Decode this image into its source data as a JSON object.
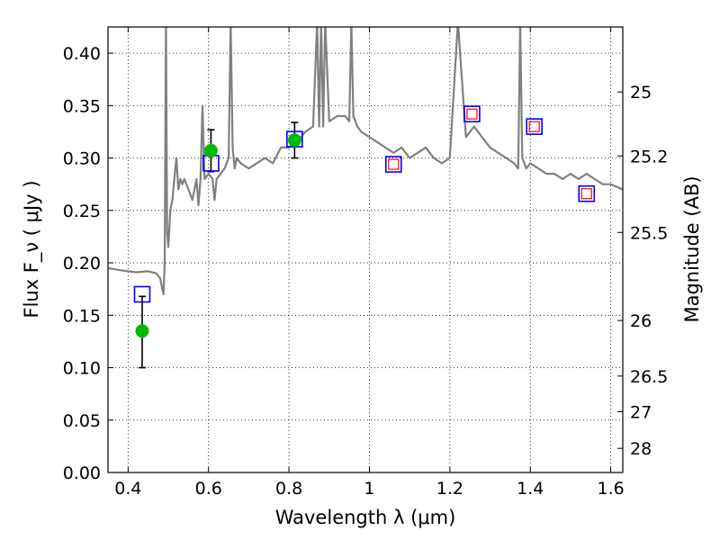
{
  "chart_data": {
    "type": "line",
    "xlabel": "Wavelength  λ (μm)",
    "ylabel": "Flux  F_ν  ( μJy )",
    "ylabel_right": "Magnitude (AB)",
    "xlim": [
      0.35,
      1.63
    ],
    "ylim": [
      0.0,
      0.425
    ],
    "grid": true,
    "x_ticks": [
      0.4,
      0.6,
      0.8,
      1.0,
      1.2,
      1.4,
      1.6
    ],
    "x_tick_labels": [
      "0.4",
      "0.6",
      "0.8",
      "1",
      "1.2",
      "1.4",
      "1.6"
    ],
    "y_ticks": [
      0.0,
      0.05,
      0.1,
      0.15,
      0.2,
      0.25,
      0.3,
      0.35,
      0.4
    ],
    "y_tick_labels": [
      "0.00",
      "0.05",
      "0.10",
      "0.15",
      "0.20",
      "0.25",
      "0.30",
      "0.35",
      "0.40"
    ],
    "right_ticks": [
      {
        "label": "25",
        "flux": 0.363
      },
      {
        "label": "25.2",
        "flux": 0.302
      },
      {
        "label": "25.5",
        "flux": 0.229
      },
      {
        "label": "26",
        "flux": 0.145
      },
      {
        "label": "26.5",
        "flux": 0.092
      },
      {
        "label": "27",
        "flux": 0.058
      },
      {
        "label": "28",
        "flux": 0.023
      }
    ],
    "series": [
      {
        "kind": "line",
        "color": "#808080",
        "x": [
          0.35,
          0.38,
          0.4,
          0.42,
          0.45,
          0.47,
          0.48,
          0.485,
          0.488,
          0.491,
          0.494,
          0.497,
          0.5,
          0.505,
          0.51,
          0.515,
          0.52,
          0.525,
          0.53,
          0.535,
          0.54,
          0.55,
          0.56,
          0.57,
          0.575,
          0.58,
          0.585,
          0.59,
          0.6,
          0.61,
          0.615,
          0.62,
          0.63,
          0.64,
          0.65,
          0.655,
          0.66,
          0.665,
          0.67,
          0.68,
          0.7,
          0.72,
          0.74,
          0.76,
          0.78,
          0.8,
          0.82,
          0.84,
          0.86,
          0.87,
          0.875,
          0.88,
          0.885,
          0.89,
          0.9,
          0.92,
          0.94,
          0.95,
          0.955,
          0.96,
          0.97,
          0.98,
          1.0,
          1.02,
          1.04,
          1.06,
          1.08,
          1.1,
          1.12,
          1.14,
          1.16,
          1.18,
          1.2,
          1.22,
          1.24,
          1.26,
          1.28,
          1.3,
          1.32,
          1.34,
          1.36,
          1.37,
          1.375,
          1.38,
          1.39,
          1.4,
          1.42,
          1.44,
          1.46,
          1.48,
          1.5,
          1.52,
          1.54,
          1.56,
          1.58,
          1.6,
          1.63
        ],
        "y": [
          0.195,
          0.193,
          0.192,
          0.191,
          0.192,
          0.19,
          0.185,
          0.175,
          0.17,
          0.2,
          0.43,
          0.23,
          0.215,
          0.25,
          0.26,
          0.28,
          0.3,
          0.27,
          0.28,
          0.275,
          0.28,
          0.27,
          0.26,
          0.28,
          0.255,
          0.28,
          0.35,
          0.28,
          0.285,
          0.28,
          0.26,
          0.28,
          0.285,
          0.29,
          0.3,
          0.43,
          0.31,
          0.29,
          0.3,
          0.295,
          0.29,
          0.295,
          0.3,
          0.295,
          0.31,
          0.31,
          0.315,
          0.325,
          0.33,
          0.43,
          0.33,
          0.43,
          0.33,
          0.43,
          0.335,
          0.34,
          0.34,
          0.335,
          0.43,
          0.34,
          0.33,
          0.325,
          0.32,
          0.315,
          0.31,
          0.305,
          0.31,
          0.3,
          0.305,
          0.31,
          0.3,
          0.295,
          0.3,
          0.43,
          0.32,
          0.33,
          0.32,
          0.31,
          0.305,
          0.3,
          0.295,
          0.29,
          0.43,
          0.3,
          0.29,
          0.295,
          0.29,
          0.285,
          0.285,
          0.28,
          0.285,
          0.28,
          0.285,
          0.28,
          0.275,
          0.275,
          0.27
        ]
      }
    ],
    "model_points": {
      "kind": "open-square",
      "color": "#0000ff",
      "points": [
        {
          "x": 0.435,
          "y": 0.17
        },
        {
          "x": 0.606,
          "y": 0.295
        },
        {
          "x": 0.814,
          "y": 0.318
        },
        {
          "x": 1.06,
          "y": 0.294
        },
        {
          "x": 1.255,
          "y": 0.342
        },
        {
          "x": 1.41,
          "y": 0.33
        },
        {
          "x": 1.54,
          "y": 0.266
        }
      ]
    },
    "observed_upper": {
      "kind": "open-square",
      "color": "#ff0000",
      "points": [
        {
          "x": 1.06,
          "y": 0.294
        },
        {
          "x": 1.255,
          "y": 0.342
        },
        {
          "x": 1.41,
          "y": 0.33
        },
        {
          "x": 1.54,
          "y": 0.266
        }
      ]
    },
    "observed": {
      "kind": "filled-circle",
      "color": "#00bb00",
      "points": [
        {
          "x": 0.435,
          "y": 0.135,
          "err_low": 0.1,
          "err_high": 0.168
        },
        {
          "x": 0.606,
          "y": 0.307,
          "err_low": 0.287,
          "err_high": 0.327
        },
        {
          "x": 0.814,
          "y": 0.317,
          "err_low": 0.3,
          "err_high": 0.334
        }
      ]
    }
  }
}
